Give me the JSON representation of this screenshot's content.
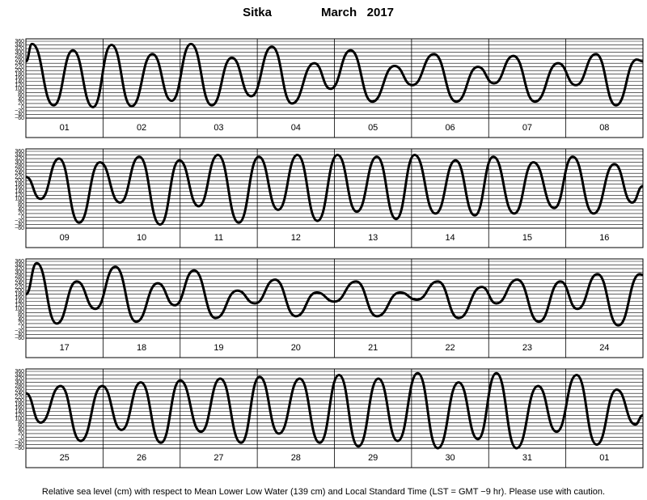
{
  "title": {
    "station": "Sitka",
    "period": "March   2017"
  },
  "footnote": "Relative sea level (cm) with respect to Mean Lower Low Water (139 cm) and Local Standard Time (LST = GMT −9 hr). Please use with caution.",
  "chart_data": [
    {
      "type": "line",
      "color": "#000000",
      "grid": true,
      "categories": [
        "01",
        "02",
        "03",
        "04",
        "05",
        "06",
        "07",
        "08"
      ],
      "xlim": [
        0,
        8
      ],
      "ylim": [
        -60,
        360
      ],
      "yticks": [
        360,
        340,
        320,
        300,
        280,
        260,
        240,
        220,
        200,
        180,
        160,
        140,
        120,
        100,
        80,
        60,
        40,
        20,
        0,
        {
          "value": -20,
          "label": "−20"
        },
        {
          "value": -40,
          "label": "−40"
        },
        {
          "value": -60,
          "label": "−60"
        }
      ],
      "x": [
        0,
        0.08,
        0.36,
        0.61,
        0.87,
        1.11,
        1.37,
        1.64,
        1.89,
        2.14,
        2.41,
        2.67,
        2.92,
        3.19,
        3.45,
        3.74,
        3.95,
        4.21,
        4.49,
        4.78,
        5.01,
        5.29,
        5.58,
        5.86,
        6.07,
        6.32,
        6.6,
        6.9,
        7.13,
        7.39,
        7.65,
        7.92,
        8
      ],
      "values": [
        250,
        345,
        10,
        310,
        0,
        340,
        5,
        290,
        35,
        345,
        10,
        270,
        60,
        330,
        20,
        240,
        100,
        310,
        30,
        225,
        120,
        290,
        30,
        220,
        130,
        280,
        30,
        240,
        120,
        290,
        10,
        260,
        250
      ]
    },
    {
      "type": "line",
      "color": "#000000",
      "grid": true,
      "categories": [
        "09",
        "10",
        "11",
        "12",
        "13",
        "14",
        "15",
        "16"
      ],
      "xlim": [
        0,
        8
      ],
      "ylim": [
        -60,
        360
      ],
      "yticks": [
        360,
        340,
        320,
        300,
        280,
        260,
        240,
        220,
        200,
        180,
        160,
        140,
        120,
        100,
        80,
        60,
        40,
        20,
        0,
        {
          "value": -20,
          "label": "−20"
        },
        {
          "value": -40,
          "label": "−40"
        },
        {
          "value": -60,
          "label": "−60"
        }
      ],
      "x": [
        0,
        0.19,
        0.43,
        0.69,
        0.96,
        1.22,
        1.47,
        1.74,
        1.99,
        2.24,
        2.49,
        2.76,
        3.02,
        3.27,
        3.52,
        3.78,
        4.04,
        4.29,
        4.55,
        4.8,
        5.04,
        5.31,
        5.57,
        5.82,
        6.06,
        6.33,
        6.58,
        6.85,
        7.09,
        7.36,
        7.63,
        7.86,
        8
      ],
      "values": [
        220,
        100,
        320,
        -30,
        300,
        80,
        330,
        -40,
        310,
        60,
        340,
        -30,
        330,
        40,
        340,
        -20,
        340,
        30,
        330,
        -10,
        340,
        20,
        310,
        10,
        330,
        20,
        300,
        50,
        330,
        20,
        290,
        80,
        170
      ]
    },
    {
      "type": "line",
      "color": "#000000",
      "grid": true,
      "categories": [
        "17",
        "18",
        "19",
        "20",
        "21",
        "22",
        "23",
        "24"
      ],
      "xlim": [
        0,
        8
      ],
      "ylim": [
        -60,
        360
      ],
      "yticks": [
        360,
        340,
        320,
        300,
        280,
        260,
        240,
        220,
        200,
        180,
        160,
        140,
        120,
        100,
        80,
        60,
        40,
        20,
        0,
        {
          "value": -20,
          "label": "−20"
        },
        {
          "value": -40,
          "label": "−40"
        },
        {
          "value": -60,
          "label": "−60"
        }
      ],
      "x": [
        0,
        0.14,
        0.4,
        0.66,
        0.9,
        1.16,
        1.43,
        1.71,
        1.93,
        2.18,
        2.46,
        2.74,
        2.97,
        3.23,
        3.5,
        3.77,
        4.0,
        4.28,
        4.55,
        4.85,
        5.07,
        5.34,
        5.61,
        5.91,
        6.1,
        6.37,
        6.65,
        6.93,
        7.15,
        7.41,
        7.68,
        7.96,
        8
      ],
      "values": [
        180,
        350,
        20,
        250,
        100,
        330,
        30,
        240,
        120,
        310,
        50,
        200,
        130,
        260,
        60,
        190,
        140,
        250,
        60,
        190,
        150,
        250,
        50,
        220,
        130,
        260,
        30,
        250,
        100,
        290,
        10,
        290,
        285
      ]
    },
    {
      "type": "line",
      "color": "#000000",
      "grid": true,
      "categories": [
        "25",
        "26",
        "27",
        "28",
        "29",
        "30",
        "31",
        "01"
      ],
      "xlim": [
        0,
        8
      ],
      "ylim": [
        -60,
        360
      ],
      "yticks": [
        360,
        340,
        320,
        300,
        280,
        260,
        240,
        220,
        200,
        180,
        160,
        140,
        120,
        100,
        80,
        60,
        40,
        20,
        0,
        {
          "value": -20,
          "label": "−20"
        },
        {
          "value": -40,
          "label": "−40"
        },
        {
          "value": -60,
          "label": "−60"
        }
      ],
      "x": [
        0,
        0.19,
        0.45,
        0.71,
        0.99,
        1.24,
        1.49,
        1.75,
        2.0,
        2.27,
        2.52,
        2.79,
        3.03,
        3.28,
        3.55,
        3.81,
        4.06,
        4.31,
        4.57,
        4.82,
        5.08,
        5.34,
        5.61,
        5.86,
        6.1,
        6.36,
        6.64,
        6.88,
        7.14,
        7.4,
        7.66,
        7.9,
        8
      ],
      "values": [
        240,
        80,
        280,
        -20,
        280,
        40,
        300,
        -30,
        310,
        30,
        320,
        -30,
        330,
        20,
        320,
        -30,
        340,
        -50,
        320,
        -20,
        350,
        -60,
        300,
        -10,
        350,
        -60,
        280,
        30,
        340,
        -40,
        260,
        70,
        120
      ]
    }
  ]
}
